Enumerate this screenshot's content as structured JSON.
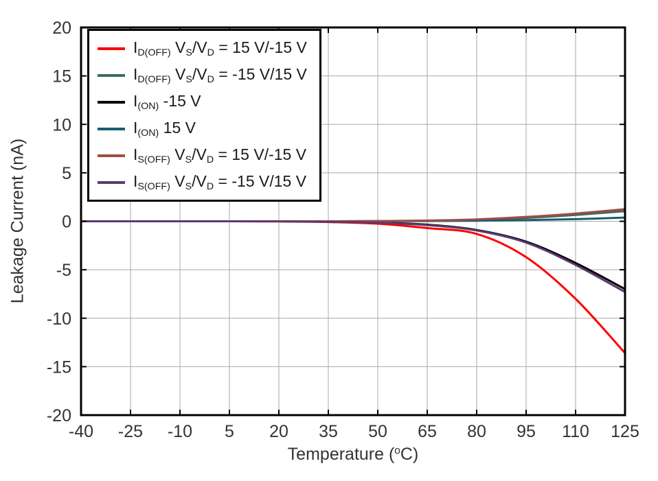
{
  "chart_data": {
    "type": "line",
    "title": "",
    "xlabel": "Temperature (oC)",
    "xlabel_segments": [
      {
        "t": "Temperature ("
      },
      {
        "t": "o",
        "sup": true
      },
      {
        "t": "C)"
      }
    ],
    "ylabel": "Leakage Current (nA)",
    "xlim": [
      -40,
      125
    ],
    "ylim": [
      -20,
      20
    ],
    "xticks": [
      -40,
      -25,
      -10,
      5,
      20,
      35,
      50,
      65,
      80,
      95,
      110,
      125
    ],
    "yticks": [
      -20,
      -15,
      -10,
      -5,
      0,
      5,
      10,
      15,
      20
    ],
    "grid": true,
    "grid_color": "#a8a8a8",
    "border_color": "#000000",
    "legend_position": "top-left",
    "x": [
      -40,
      -25,
      -10,
      5,
      20,
      35,
      50,
      65,
      80,
      95,
      110,
      125
    ],
    "series": [
      {
        "name": "ID(OFF) VS/VD = 15 V/-15 V",
        "color": "#FF0000",
        "label_segments": [
          {
            "t": "I"
          },
          {
            "t": "D(OFF)",
            "sub": true
          },
          {
            "t": " V"
          },
          {
            "t": "S",
            "sub": true
          },
          {
            "t": "/V"
          },
          {
            "t": "D",
            "sub": true
          },
          {
            "t": " = 15 V/-15 V"
          }
        ],
        "values": [
          0,
          0,
          0,
          0,
          -0.02,
          -0.08,
          -0.25,
          -0.7,
          -1.3,
          -3.7,
          -8.0,
          -13.6
        ]
      },
      {
        "name": "ID(OFF) VS/VD = -15 V/15 V",
        "color": "#3D6B5E",
        "label_segments": [
          {
            "t": "I"
          },
          {
            "t": "D(OFF)",
            "sub": true
          },
          {
            "t": " V"
          },
          {
            "t": "S",
            "sub": true
          },
          {
            "t": "/V"
          },
          {
            "t": "D",
            "sub": true
          },
          {
            "t": " = -15 V/15 V"
          }
        ],
        "values": [
          0,
          0,
          0,
          0,
          0,
          0,
          0.02,
          0.06,
          0.15,
          0.35,
          0.65,
          1.05
        ]
      },
      {
        "name": "I(ON) -15 V",
        "color": "#000000",
        "label_segments": [
          {
            "t": "I"
          },
          {
            "t": "(ON)",
            "sub": true
          },
          {
            "t": " -15 V"
          }
        ],
        "values": [
          0,
          0,
          0,
          0,
          0,
          -0.04,
          -0.12,
          -0.35,
          -0.9,
          -2.1,
          -4.3,
          -7.0
        ]
      },
      {
        "name": "I(ON) 15 V",
        "color": "#175E73",
        "label_segments": [
          {
            "t": "I"
          },
          {
            "t": "(ON)",
            "sub": true
          },
          {
            "t": " 15 V"
          }
        ],
        "values": [
          0,
          0,
          0,
          0,
          0,
          0,
          0.01,
          0.03,
          0.06,
          0.12,
          0.22,
          0.38
        ]
      },
      {
        "name": "IS(OFF) VS/VD = 15 V/-15 V",
        "color": "#A04B44",
        "label_segments": [
          {
            "t": "I"
          },
          {
            "t": "S(OFF)",
            "sub": true
          },
          {
            "t": " V"
          },
          {
            "t": "S",
            "sub": true
          },
          {
            "t": "/V"
          },
          {
            "t": "D",
            "sub": true
          },
          {
            "t": " = 15 V/-15 V"
          }
        ],
        "values": [
          0,
          0,
          0,
          0,
          0,
          0,
          0.03,
          0.08,
          0.2,
          0.45,
          0.8,
          1.25
        ]
      },
      {
        "name": "IS(OFF) VS/VD = -15 V/15 V",
        "color": "#5C3A6E",
        "label_segments": [
          {
            "t": "I"
          },
          {
            "t": "S(OFF)",
            "sub": true
          },
          {
            "t": " V"
          },
          {
            "t": "S",
            "sub": true
          },
          {
            "t": "/V"
          },
          {
            "t": "D",
            "sub": true
          },
          {
            "t": " = -15 V/15 V"
          }
        ],
        "values": [
          0,
          0,
          0,
          0,
          0,
          -0.05,
          -0.15,
          -0.4,
          -0.95,
          -2.2,
          -4.5,
          -7.3
        ]
      }
    ]
  }
}
